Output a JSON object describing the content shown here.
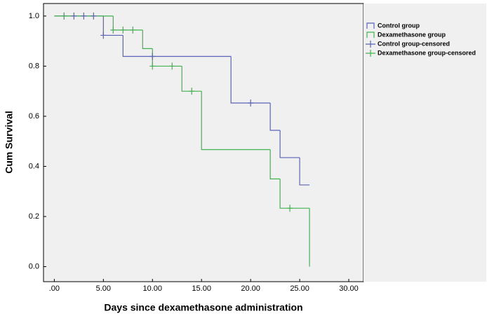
{
  "chart_data": {
    "type": "survival",
    "x_label": "Days since dexamethasone administration",
    "y_label": "Cum Survival",
    "xlim": [
      -1.1,
      31.5
    ],
    "ylim": [
      -0.06,
      1.05
    ],
    "xticks": [
      {
        "value": 0,
        "label": ".00"
      },
      {
        "value": 5,
        "label": "5.00"
      },
      {
        "value": 10,
        "label": "10.00"
      },
      {
        "value": 15,
        "label": "15.00"
      },
      {
        "value": 20,
        "label": "20.00"
      },
      {
        "value": 25,
        "label": "25.00"
      },
      {
        "value": 30,
        "label": "30.00"
      }
    ],
    "yticks": [
      {
        "value": 0,
        "label": "0.0"
      },
      0.2,
      0.4,
      0.6,
      0.8,
      {
        "value": 1,
        "label": "1.0"
      }
    ],
    "legend": "right",
    "series": [
      {
        "name": "Control group",
        "kind": "step",
        "color": "#5a63b8",
        "x": [
          0,
          5,
          7,
          18,
          22,
          23,
          25,
          26
        ],
        "values": [
          1,
          0.923,
          0.839,
          0.653,
          0.544,
          0.435,
          0.326,
          0.326
        ]
      },
      {
        "name": "Dexamethasone group",
        "kind": "step",
        "color": "#3fb34f",
        "x": [
          0,
          6,
          9,
          10,
          13,
          15,
          22,
          23,
          26
        ],
        "values": [
          1,
          0.944,
          0.87,
          0.8,
          0.7,
          0.467,
          0.35,
          0.233,
          0
        ]
      },
      {
        "name": "Control group-censored",
        "kind": "censored",
        "color": "#5a63b8",
        "x": [
          1,
          2,
          3,
          4,
          5,
          10,
          20
        ],
        "values": [
          1,
          1,
          1,
          1,
          0.923,
          0.839,
          0.653
        ]
      },
      {
        "name": "Dexamethasone group-censored",
        "kind": "censored",
        "color": "#3fb34f",
        "x": [
          1,
          6,
          7,
          8,
          10,
          12,
          14,
          24
        ],
        "values": [
          1,
          0.944,
          0.944,
          0.944,
          0.8,
          0.8,
          0.7,
          0.233
        ]
      }
    ]
  }
}
